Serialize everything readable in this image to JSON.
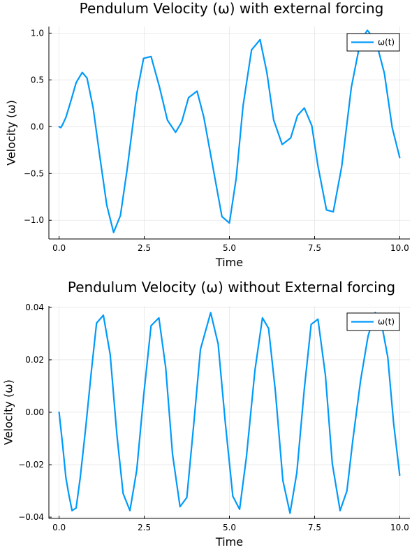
{
  "chart_data": [
    {
      "type": "line",
      "title": "Pendulum Velocity (ω) with external forcing",
      "xlabel": "Time",
      "ylabel": "Velocity (ω)",
      "xlim": [
        -0.3,
        10.3
      ],
      "ylim": [
        -1.2,
        1.07
      ],
      "xticks": [
        0,
        2.5,
        5,
        7.5,
        10
      ],
      "xtick_labels": [
        "0.0",
        "2.5",
        "5.0",
        "7.5",
        "10.0"
      ],
      "yticks": [
        -1,
        -0.5,
        0,
        0.5,
        1
      ],
      "ytick_labels": [
        "−1.0",
        "−0.5",
        "0.0",
        "0.5",
        "1.0"
      ],
      "grid": true,
      "legend": "top-right",
      "series": [
        {
          "name": "ω(t)",
          "color": "#009AFA",
          "x": [
            0,
            0.05,
            0.1,
            0.2,
            0.35,
            0.5,
            0.68,
            0.82,
            1.0,
            1.2,
            1.4,
            1.6,
            1.8,
            2.0,
            2.28,
            2.48,
            2.7,
            2.95,
            3.18,
            3.42,
            3.6,
            3.8,
            4.05,
            4.25,
            4.5,
            4.78,
            5.0,
            5.2,
            5.4,
            5.65,
            5.9,
            6.1,
            6.3,
            6.55,
            6.8,
            7.0,
            7.2,
            7.42,
            7.6,
            7.85,
            8.05,
            8.3,
            8.58,
            8.85,
            9.05,
            9.3,
            9.55,
            9.78,
            10.0
          ],
          "y": [
            0.0,
            -0.01,
            0.02,
            0.1,
            0.28,
            0.47,
            0.58,
            0.52,
            0.2,
            -0.33,
            -0.84,
            -1.13,
            -0.95,
            -0.45,
            0.35,
            0.73,
            0.75,
            0.42,
            0.07,
            -0.06,
            0.05,
            0.31,
            0.38,
            0.1,
            -0.4,
            -0.96,
            -1.03,
            -0.55,
            0.22,
            0.82,
            0.93,
            0.58,
            0.07,
            -0.19,
            -0.12,
            0.12,
            0.2,
            0.01,
            -0.42,
            -0.89,
            -0.91,
            -0.42,
            0.42,
            0.92,
            1.03,
            0.92,
            0.57,
            -0.01,
            -0.33
          ]
        }
      ]
    },
    {
      "type": "line",
      "title": "Pendulum Velocity (ω) without External forcing",
      "xlabel": "Time",
      "ylabel": "Velocity (ω)",
      "xlim": [
        -0.3,
        10.3
      ],
      "ylim": [
        -0.0405,
        0.0405
      ],
      "xticks": [
        0,
        2.5,
        5,
        7.5,
        10
      ],
      "xtick_labels": [
        "0.0",
        "2.5",
        "5.0",
        "7.5",
        "10.0"
      ],
      "yticks": [
        -0.04,
        -0.02,
        0,
        0.02,
        0.04
      ],
      "ytick_labels": [
        "−0.04",
        "−0.02",
        "0.00",
        "0.02",
        "0.04"
      ],
      "grid": true,
      "legend": "top-right",
      "series": [
        {
          "name": "ω(t)",
          "color": "#009AFA",
          "x": [
            0,
            0.1,
            0.2,
            0.28,
            0.38,
            0.5,
            0.62,
            0.78,
            0.95,
            1.1,
            1.3,
            1.5,
            1.7,
            1.88,
            2.08,
            2.28,
            2.48,
            2.7,
            2.93,
            3.13,
            3.33,
            3.55,
            3.75,
            3.95,
            4.15,
            4.45,
            4.67,
            4.88,
            5.1,
            5.3,
            5.5,
            5.75,
            5.97,
            6.15,
            6.35,
            6.57,
            6.78,
            6.98,
            7.2,
            7.4,
            7.6,
            7.82,
            8.02,
            8.25,
            8.45,
            8.62,
            8.85,
            9.07,
            9.28,
            9.45,
            9.65,
            9.82,
            10.0
          ],
          "y": [
            0.0,
            -0.012,
            -0.025,
            -0.031,
            -0.0375,
            -0.0365,
            -0.025,
            -0.006,
            0.016,
            0.034,
            0.037,
            0.022,
            -0.009,
            -0.031,
            -0.0375,
            -0.022,
            0.006,
            0.033,
            0.036,
            0.017,
            -0.016,
            -0.036,
            -0.0325,
            -0.005,
            0.024,
            0.038,
            0.026,
            -0.004,
            -0.032,
            -0.037,
            -0.017,
            0.016,
            0.036,
            0.032,
            0.008,
            -0.026,
            -0.0385,
            -0.023,
            0.009,
            0.0335,
            0.0355,
            0.014,
            -0.0195,
            -0.0375,
            -0.03,
            -0.011,
            0.012,
            0.029,
            0.038,
            0.035,
            0.021,
            -0.004,
            -0.024
          ]
        }
      ]
    }
  ]
}
